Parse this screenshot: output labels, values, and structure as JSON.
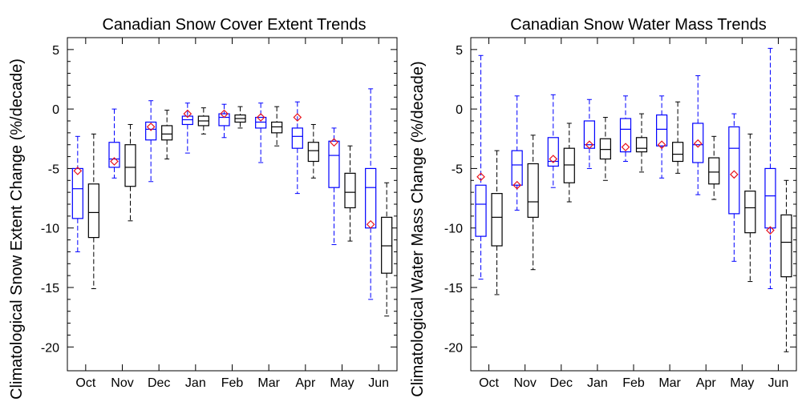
{
  "chart_data": [
    {
      "type": "box",
      "title": "Canadian Snow Cover Extent Trends",
      "xlabel": "",
      "ylabel": "Climatological Snow Extent Change (%/decade)",
      "ylim": [
        -22,
        6
      ],
      "yticks": [
        5,
        0,
        -5,
        -10,
        -15,
        -20
      ],
      "grid": false,
      "legend": "none",
      "categories": [
        "Oct",
        "Nov",
        "Dec",
        "Jan",
        "Feb",
        "Mar",
        "Apr",
        "May",
        "Jun"
      ],
      "series": [
        {
          "color": "#0000ff",
          "boxes": [
            {
              "min": -12,
              "q1": -9.2,
              "median": -6.7,
              "q3": -5,
              "max": -2.3
            },
            {
              "min": -5.8,
              "q1": -4.9,
              "median": -4.2,
              "q3": -2.8,
              "max": 0
            },
            {
              "min": -6.1,
              "q1": -2.6,
              "median": -1.7,
              "q3": -1.1,
              "max": 0.7
            },
            {
              "min": -3.7,
              "q1": -1.3,
              "median": -0.9,
              "q3": -0.6,
              "max": 0.5
            },
            {
              "min": -2.4,
              "q1": -1.4,
              "median": -0.7,
              "q3": -0.4,
              "max": 0.4
            },
            {
              "min": -4.5,
              "q1": -1.6,
              "median": -1.1,
              "q3": -0.7,
              "max": 0.5
            },
            {
              "min": -7.1,
              "q1": -3.3,
              "median": -2.3,
              "q3": -1.6,
              "max": 0.6
            },
            {
              "min": -11.4,
              "q1": -6.6,
              "median": -3.9,
              "q3": -2.7,
              "max": -1.6
            },
            {
              "min": -16,
              "q1": -10,
              "median": -6.6,
              "q3": -5,
              "max": 1.7
            }
          ]
        },
        {
          "color": "#000000",
          "boxes": [
            {
              "min": -15.1,
              "q1": -10.8,
              "median": -8.7,
              "q3": -6.3,
              "max": -2.1
            },
            {
              "min": -9.4,
              "q1": -6.5,
              "median": -4.9,
              "q3": -3,
              "max": -1.3
            },
            {
              "min": -4.2,
              "q1": -2.6,
              "median": -2.1,
              "q3": -1.4,
              "max": -0.1
            },
            {
              "min": -2.1,
              "q1": -1.4,
              "median": -1.0,
              "q3": -0.6,
              "max": 0.1
            },
            {
              "min": -1.6,
              "q1": -1.1,
              "median": -0.8,
              "q3": -0.5,
              "max": 0.2
            },
            {
              "min": -3.1,
              "q1": -2.0,
              "median": -1.5,
              "q3": -1.1,
              "max": 0.2
            },
            {
              "min": -5.8,
              "q1": -4.4,
              "median": -3.5,
              "q3": -2.8,
              "max": -1.3
            },
            {
              "min": -11.1,
              "q1": -8.3,
              "median": -7.0,
              "q3": -5.4,
              "max": -3.1
            },
            {
              "min": -17.4,
              "q1": -13.8,
              "median": -11.5,
              "q3": -9.1,
              "max": -6.2
            }
          ]
        }
      ],
      "markers": {
        "color": "#e8141e",
        "shape": "diamond",
        "values": [
          -5.2,
          -4.4,
          -1.5,
          -0.4,
          -0.4,
          -0.7,
          -0.7,
          -2.8,
          -9.7
        ]
      }
    },
    {
      "type": "box",
      "title": "Canadian Snow Water Mass Trends",
      "xlabel": "",
      "ylabel": "Climatological Water Mass Change (%/decade)",
      "ylim": [
        -22,
        6
      ],
      "yticks": [
        5,
        0,
        -5,
        -10,
        -15,
        -20
      ],
      "grid": false,
      "legend": "none",
      "categories": [
        "Oct",
        "Nov",
        "Dec",
        "Jan",
        "Feb",
        "Mar",
        "Apr",
        "May",
        "Jun"
      ],
      "series": [
        {
          "color": "#0000ff",
          "boxes": [
            {
              "min": -14.3,
              "q1": -10.7,
              "median": -8.0,
              "q3": -6.4,
              "max": 4.5
            },
            {
              "min": -8.5,
              "q1": -6.4,
              "median": -4.7,
              "q3": -3.5,
              "max": 1.1
            },
            {
              "min": -6.6,
              "q1": -4.8,
              "median": -4.4,
              "q3": -2.4,
              "max": 1.2
            },
            {
              "min": -5.0,
              "q1": -3.3,
              "median": -3.0,
              "q3": -1.0,
              "max": 0.8
            },
            {
              "min": -4.4,
              "q1": -3.6,
              "median": -1.7,
              "q3": -0.8,
              "max": 1.1
            },
            {
              "min": -5.8,
              "q1": -3.1,
              "median": -1.7,
              "q3": -0.5,
              "max": 1.1
            },
            {
              "min": -7.2,
              "q1": -4.5,
              "median": -3.0,
              "q3": -1.2,
              "max": 2.8
            },
            {
              "min": -12.8,
              "q1": -8.8,
              "median": -3.3,
              "q3": -1.5,
              "max": -0.4
            },
            {
              "min": -15.1,
              "q1": -10.0,
              "median": -7.3,
              "q3": -5.0,
              "max": 5.1
            }
          ]
        },
        {
          "color": "#000000",
          "boxes": [
            {
              "min": -15.6,
              "q1": -11.5,
              "median": -9.1,
              "q3": -7.1,
              "max": -3.5
            },
            {
              "min": -13.5,
              "q1": -9.1,
              "median": -7.8,
              "q3": -4.6,
              "max": -2.2
            },
            {
              "min": -7.8,
              "q1": -6.2,
              "median": -4.7,
              "q3": -3.3,
              "max": -1.2
            },
            {
              "min": -6.0,
              "q1": -4.2,
              "median": -3.4,
              "q3": -2.5,
              "max": -0.7
            },
            {
              "min": -5.3,
              "q1": -3.6,
              "median": -3.3,
              "q3": -2.4,
              "max": -0.4
            },
            {
              "min": -5.4,
              "q1": -4.4,
              "median": -3.8,
              "q3": -2.8,
              "max": 0.6
            },
            {
              "min": -7.6,
              "q1": -6.3,
              "median": -5.3,
              "q3": -4.1,
              "max": -2.3
            },
            {
              "min": -14.5,
              "q1": -10.4,
              "median": -8.3,
              "q3": -6.9,
              "max": -2.1
            },
            {
              "min": -20.4,
              "q1": -14.1,
              "median": -11.2,
              "q3": -8.9,
              "max": -6.0
            }
          ]
        }
      ],
      "markers": {
        "color": "#e8141e",
        "shape": "diamond",
        "values": [
          -5.7,
          -6.4,
          -4.2,
          -3.0,
          -3.2,
          -3.0,
          -2.9,
          -5.5,
          -10.2
        ]
      }
    }
  ]
}
